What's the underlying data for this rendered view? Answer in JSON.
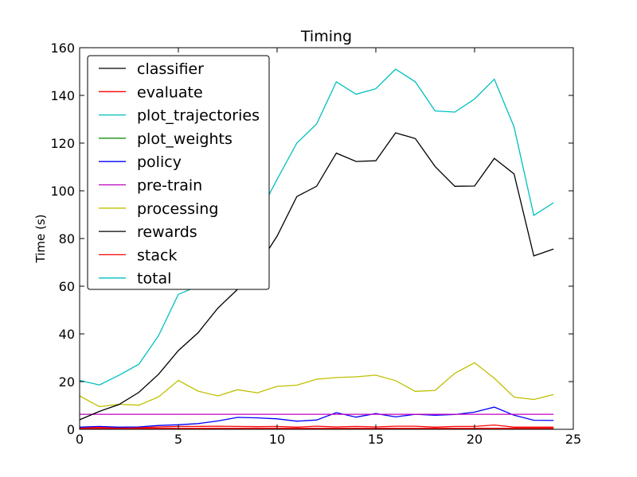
{
  "chart_data": {
    "type": "line",
    "title": "Timing",
    "xlabel": "",
    "ylabel": "Time (s)",
    "xlim": [
      0,
      25
    ],
    "ylim": [
      0,
      160
    ],
    "xticks": [
      "0",
      "5",
      "10",
      "15",
      "20",
      "25"
    ],
    "yticks": [
      "0",
      "20",
      "40",
      "60",
      "80",
      "100",
      "120",
      "140",
      "160"
    ],
    "grid": false,
    "legend_position": "upper-left",
    "x": [
      0,
      1,
      2,
      3,
      4,
      5,
      6,
      7,
      8,
      9,
      10,
      11,
      12,
      13,
      14,
      15,
      16,
      17,
      18,
      19,
      20,
      21,
      22,
      23,
      24
    ],
    "series": [
      {
        "name": "classifier",
        "color": "#000000",
        "values": [
          0.3,
          0.3,
          0.3,
          0.3,
          0.3,
          0.3,
          0.3,
          0.3,
          0.3,
          0.3,
          0.3,
          0.3,
          0.3,
          0.3,
          0.3,
          0.3,
          0.3,
          0.3,
          0.3,
          0.3,
          0.3,
          0.3,
          0.3,
          0.3,
          0.3
        ]
      },
      {
        "name": "evaluate",
        "color": "#ff0000",
        "values": [
          0.8,
          0.9,
          0.7,
          0.7,
          1.0,
          1.2,
          1.2,
          1.3,
          1.2,
          1.1,
          1.2,
          0.9,
          1.3,
          1.0,
          1.2,
          1.0,
          1.3,
          1.3,
          0.9,
          1.2,
          1.2,
          1.8,
          0.9,
          0.9,
          0.9
        ]
      },
      {
        "name": "plot_trajectories",
        "color": "#00bfbf",
        "values": [
          0.2,
          0.2,
          0.2,
          0.2,
          0.2,
          0.2,
          0.2,
          0.2,
          0.2,
          0.2,
          0.2,
          0.2,
          0.2,
          0.2,
          0.2,
          0.2,
          0.2,
          0.2,
          0.2,
          0.2,
          0.2,
          0.2,
          0.2,
          0.2,
          0.2
        ]
      },
      {
        "name": "plot_weights",
        "color": "#008000",
        "values": [
          0.1,
          0.1,
          0.1,
          0.1,
          0.1,
          0.1,
          0.1,
          0.1,
          0.1,
          0.1,
          0.1,
          0.1,
          0.1,
          0.1,
          0.1,
          0.1,
          0.1,
          0.1,
          0.1,
          0.1,
          0.1,
          0.1,
          0.1,
          0.1,
          0.1
        ]
      },
      {
        "name": "policy",
        "color": "#0000ff",
        "values": [
          0.9,
          1.2,
          0.9,
          1.0,
          1.6,
          1.9,
          2.4,
          3.5,
          5.0,
          4.8,
          4.4,
          3.4,
          3.9,
          7.0,
          5.1,
          6.6,
          5.2,
          6.3,
          5.9,
          6.2,
          7.2,
          9.3,
          5.9,
          3.8,
          3.7
        ]
      },
      {
        "name": "pre-train",
        "color": "#bf00bf",
        "values": [
          6.3,
          6.3,
          6.3,
          6.3,
          6.3,
          6.3,
          6.3,
          6.3,
          6.3,
          6.3,
          6.3,
          6.3,
          6.3,
          6.3,
          6.3,
          6.3,
          6.3,
          6.3,
          6.3,
          6.3,
          6.3,
          6.3,
          6.3,
          6.3,
          6.3
        ]
      },
      {
        "name": "processing",
        "color": "#bfbf00",
        "values": [
          14.0,
          9.5,
          10.5,
          10.1,
          13.6,
          20.5,
          16.0,
          14.0,
          16.6,
          15.3,
          18.0,
          18.5,
          21.0,
          21.7,
          22.0,
          22.7,
          20.4,
          15.9,
          16.3,
          23.5,
          27.9,
          21.4,
          13.5,
          12.5,
          14.6
        ]
      },
      {
        "name": "rewards",
        "color": "#000000",
        "values": [
          4.0,
          7.5,
          10.4,
          15.5,
          23.1,
          33.0,
          40.5,
          50.8,
          58.7,
          68.1,
          81.0,
          97.6,
          101.9,
          115.8,
          112.3,
          112.6,
          124.3,
          121.9,
          110.2,
          101.9,
          102.0,
          113.6,
          107.1,
          72.7,
          75.6
        ]
      },
      {
        "name": "stack",
        "color": "#ff0000",
        "values": [
          0.4,
          0.4,
          0.4,
          0.4,
          0.4,
          0.4,
          0.4,
          0.4,
          0.4,
          0.4,
          0.4,
          0.4,
          0.4,
          0.4,
          0.4,
          0.4,
          0.4,
          0.4,
          0.4,
          0.4,
          0.4,
          0.4,
          0.4,
          0.4,
          0.4
        ]
      },
      {
        "name": "total",
        "color": "#00bfbf",
        "values": [
          20.5,
          18.6,
          22.7,
          27.3,
          39.3,
          56.6,
          60.0,
          67.5,
          72.0,
          89.0,
          104.8,
          120.0,
          128.0,
          145.7,
          140.5,
          142.8,
          151.0,
          145.7,
          133.5,
          133.0,
          138.5,
          146.8,
          126.8,
          89.7,
          95.0
        ]
      }
    ]
  }
}
